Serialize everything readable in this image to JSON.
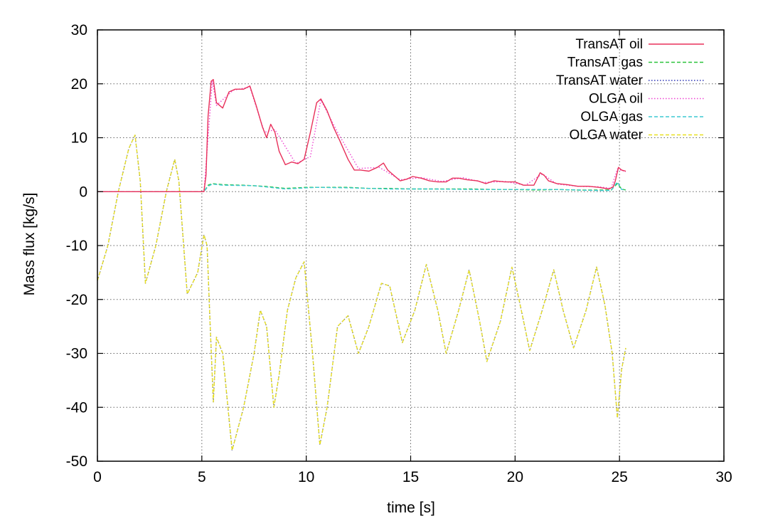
{
  "chart_data": {
    "type": "line",
    "title": "",
    "xlabel": "time [s]",
    "ylabel": "Mass flux [kg/s]",
    "xlim": [
      0,
      30
    ],
    "ylim": [
      -50,
      30
    ],
    "xticks": [
      0,
      5,
      10,
      15,
      20,
      25,
      30
    ],
    "yticks": [
      -50,
      -40,
      -30,
      -20,
      -10,
      0,
      10,
      20,
      30
    ],
    "grid": true,
    "legend_position": "top-right",
    "series": [
      {
        "name": "TransAT oil",
        "color": "#e8305a",
        "dash": "solid",
        "x": [
          0,
          5.1,
          5.2,
          5.3,
          5.45,
          5.55,
          5.7,
          6.0,
          6.3,
          6.6,
          7.0,
          7.3,
          7.6,
          7.9,
          8.1,
          8.3,
          8.5,
          8.7,
          9.0,
          9.3,
          9.6,
          9.9,
          10.2,
          10.5,
          10.7,
          11.0,
          11.3,
          11.6,
          12.0,
          12.3,
          12.6,
          13.0,
          13.4,
          13.7,
          13.9,
          14.2,
          14.5,
          14.8,
          15.1,
          15.5,
          15.9,
          16.3,
          16.7,
          17.0,
          17.3,
          17.7,
          18.2,
          18.6,
          19.0,
          19.5,
          20.0,
          20.4,
          20.9,
          21.2,
          21.4,
          21.6,
          22.0,
          22.5,
          23.0,
          23.5,
          24.0,
          24.5,
          24.7,
          24.8,
          24.95,
          25.1,
          25.3
        ],
        "y": [
          0,
          0,
          3,
          14,
          20.5,
          20.8,
          16.5,
          15.5,
          18.5,
          19,
          19,
          19.6,
          16,
          12,
          10,
          12.5,
          11,
          7.5,
          5,
          5.5,
          5.2,
          6,
          11,
          16.5,
          17.2,
          15,
          12,
          9.5,
          6,
          4,
          4,
          3.8,
          4.5,
          5.3,
          4,
          3,
          2,
          2.3,
          2.8,
          2.5,
          2,
          1.8,
          1.8,
          2.5,
          2.5,
          2.2,
          2,
          1.5,
          2,
          1.8,
          1.8,
          1.2,
          1.2,
          3.5,
          3,
          2,
          1.5,
          1.3,
          1,
          1,
          0.8,
          0.5,
          0.9,
          2,
          4.5,
          4,
          3.8
        ]
      },
      {
        "name": "TransAT gas",
        "color": "#2cc33c",
        "dash": "dashed",
        "x": [
          0,
          5.1,
          5.3,
          5.5,
          6.0,
          7.0,
          8.0,
          9.0,
          10.0,
          11.0,
          12.0,
          13.0,
          14.0,
          15.0,
          16.0,
          17.0,
          18.0,
          19.0,
          20.0,
          21.0,
          22.0,
          23.0,
          24.0,
          24.6,
          24.9,
          25.1,
          25.3
        ],
        "y": [
          0,
          0,
          1.2,
          1.5,
          1.3,
          1.2,
          1.0,
          0.6,
          0.8,
          0.8,
          0.8,
          0.6,
          0.6,
          0.5,
          0.5,
          0.5,
          0.5,
          0.4,
          0.4,
          0.3,
          0.4,
          0.3,
          0.3,
          0.3,
          1.5,
          0.5,
          0.3
        ]
      },
      {
        "name": "TransAT water",
        "color": "#2b35b5",
        "dash": "dotted",
        "x": [
          0,
          0.5,
          1.0,
          1.5,
          1.8,
          2.05,
          2.3,
          2.8,
          3.3,
          3.7,
          3.9,
          4.3,
          4.8,
          5.1,
          5.25,
          5.4,
          5.55,
          5.7,
          6.0,
          6.3,
          6.45,
          7.0,
          7.5,
          7.8,
          8.1,
          8.45,
          8.7,
          9.1,
          9.5,
          9.9,
          10.3,
          10.65,
          11.0,
          11.5,
          12.0,
          12.5,
          13.0,
          13.6,
          14.0,
          14.6,
          15.2,
          15.75,
          16.3,
          16.7,
          17.3,
          17.8,
          18.3,
          18.65,
          19.3,
          19.85,
          20.3,
          20.7,
          21.3,
          21.85,
          22.3,
          22.8,
          23.4,
          23.9,
          24.3,
          24.65,
          24.9,
          25.1,
          25.3
        ],
        "y": [
          -16.5,
          -10,
          0,
          8,
          10.5,
          2,
          -17,
          -10,
          0,
          6,
          2,
          -19,
          -15,
          -8,
          -10,
          -25,
          -39,
          -27,
          -30,
          -42,
          -48,
          -40,
          -30,
          -22,
          -25,
          -40,
          -34,
          -22,
          -16,
          -13,
          -30,
          -47,
          -40,
          -25,
          -23,
          -30,
          -25,
          -17,
          -17.5,
          -28,
          -22,
          -13.5,
          -22,
          -30,
          -22,
          -14.5,
          -24,
          -31.5,
          -24,
          -14,
          -22,
          -29.5,
          -22,
          -14.5,
          -22,
          -29,
          -22,
          -14,
          -21,
          -30,
          -42,
          -33,
          -29
        ]
      },
      {
        "name": "OLGA oil",
        "color": "#ee44d2",
        "dash": "dotted",
        "x": [
          0,
          5.1,
          5.3,
          5.5,
          5.7,
          6.5,
          7.3,
          8.0,
          8.5,
          9.5,
          10.2,
          10.7,
          11.5,
          12.5,
          13.5,
          14.5,
          15.5,
          16.5,
          17.5,
          18.5,
          19.5,
          20.5,
          21.3,
          22.0,
          23.0,
          24.0,
          24.6,
          24.9,
          25.3
        ],
        "y": [
          0,
          0,
          10,
          20.5,
          16,
          18.8,
          19.4,
          11,
          11.5,
          5.2,
          6.5,
          17,
          11,
          4.3,
          4.5,
          2.2,
          2.6,
          1.9,
          2.6,
          1.7,
          1.9,
          1.2,
          3.3,
          1.4,
          1,
          0.9,
          0.6,
          4.2,
          3.7
        ]
      },
      {
        "name": "OLGA gas",
        "color": "#3cc8d2",
        "dash": "dashed",
        "x": [
          0,
          5.1,
          5.3,
          5.5,
          6.0,
          7.5,
          9.0,
          10.5,
          12.0,
          14.0,
          16.0,
          18.0,
          20.0,
          22.0,
          24.0,
          24.6,
          24.9,
          25.1,
          25.3
        ],
        "y": [
          0,
          0,
          1.0,
          1.4,
          1.2,
          1.1,
          0.5,
          0.8,
          0.7,
          0.5,
          0.5,
          0.4,
          0.4,
          0.4,
          0.2,
          0.2,
          1.8,
          0.4,
          0.3
        ]
      },
      {
        "name": "OLGA water",
        "color": "#e8e021",
        "dash": "dashed",
        "x": [
          0,
          0.5,
          1.0,
          1.5,
          1.8,
          2.05,
          2.3,
          2.8,
          3.3,
          3.7,
          3.9,
          4.3,
          4.8,
          5.1,
          5.25,
          5.4,
          5.55,
          5.7,
          6.0,
          6.3,
          6.45,
          7.0,
          7.5,
          7.8,
          8.1,
          8.45,
          8.7,
          9.1,
          9.5,
          9.9,
          10.3,
          10.65,
          11.0,
          11.5,
          12.0,
          12.5,
          13.0,
          13.6,
          14.0,
          14.6,
          15.2,
          15.75,
          16.3,
          16.7,
          17.3,
          17.8,
          18.3,
          18.65,
          19.3,
          19.85,
          20.3,
          20.7,
          21.3,
          21.85,
          22.3,
          22.8,
          23.4,
          23.9,
          24.3,
          24.65,
          24.9,
          25.1,
          25.3
        ],
        "y": [
          -16.5,
          -10,
          0,
          8,
          10.5,
          2,
          -17,
          -10,
          0,
          6,
          2,
          -19,
          -15,
          -8,
          -10,
          -25,
          -39,
          -27,
          -30,
          -42,
          -48,
          -40,
          -30,
          -22,
          -25,
          -40,
          -34,
          -22,
          -16,
          -13,
          -30,
          -47,
          -40,
          -25,
          -23,
          -30,
          -25,
          -17,
          -17.5,
          -28,
          -22,
          -13.5,
          -22,
          -30,
          -22,
          -14.5,
          -24,
          -31.5,
          -24,
          -14,
          -22,
          -29.5,
          -22,
          -14.5,
          -22,
          -29,
          -22,
          -14,
          -21,
          -30,
          -42,
          -33,
          -29
        ]
      }
    ]
  }
}
